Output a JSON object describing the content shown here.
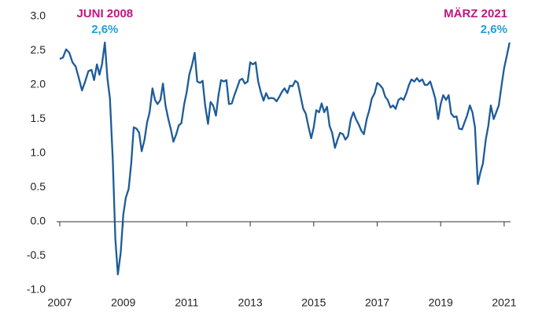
{
  "chart_data": {
    "type": "line",
    "x": [
      2007.0,
      2007.1,
      2007.2,
      2007.3,
      2007.4,
      2007.5,
      2007.6,
      2007.7,
      2007.8,
      2007.9,
      2008.0,
      2008.08,
      2008.17,
      2008.25,
      2008.33,
      2008.42,
      2008.5,
      2008.58,
      2008.67,
      2008.75,
      2008.83,
      2008.92,
      2009.0,
      2009.08,
      2009.17,
      2009.25,
      2009.33,
      2009.42,
      2009.5,
      2009.58,
      2009.67,
      2009.75,
      2009.83,
      2009.92,
      2010.0,
      2010.08,
      2010.17,
      2010.25,
      2010.33,
      2010.42,
      2010.5,
      2010.58,
      2010.67,
      2010.75,
      2010.83,
      2010.92,
      2011.0,
      2011.08,
      2011.17,
      2011.25,
      2011.33,
      2011.42,
      2011.5,
      2011.58,
      2011.67,
      2011.75,
      2011.83,
      2011.92,
      2012.0,
      2012.08,
      2012.17,
      2012.25,
      2012.33,
      2012.42,
      2012.5,
      2012.58,
      2012.67,
      2012.75,
      2012.83,
      2012.92,
      2013.0,
      2013.08,
      2013.17,
      2013.25,
      2013.33,
      2013.42,
      2013.5,
      2013.58,
      2013.67,
      2013.75,
      2013.83,
      2013.92,
      2014.0,
      2014.08,
      2014.17,
      2014.25,
      2014.33,
      2014.42,
      2014.5,
      2014.58,
      2014.67,
      2014.75,
      2014.83,
      2014.92,
      2015.0,
      2015.08,
      2015.17,
      2015.25,
      2015.33,
      2015.42,
      2015.5,
      2015.58,
      2015.67,
      2015.75,
      2015.83,
      2015.92,
      2016.0,
      2016.08,
      2016.17,
      2016.25,
      2016.33,
      2016.42,
      2016.5,
      2016.58,
      2016.67,
      2016.75,
      2016.83,
      2016.92,
      2017.0,
      2017.08,
      2017.17,
      2017.25,
      2017.33,
      2017.42,
      2017.5,
      2017.58,
      2017.67,
      2017.75,
      2017.83,
      2017.92,
      2018.0,
      2018.08,
      2018.17,
      2018.25,
      2018.33,
      2018.42,
      2018.5,
      2018.58,
      2018.67,
      2018.75,
      2018.83,
      2018.92,
      2019.0,
      2019.08,
      2019.17,
      2019.25,
      2019.33,
      2019.42,
      2019.5,
      2019.58,
      2019.67,
      2019.75,
      2019.83,
      2019.92,
      2020.0,
      2020.08,
      2020.17,
      2020.25,
      2020.33,
      2020.42,
      2020.5,
      2020.58,
      2020.67,
      2020.75,
      2020.83,
      2020.92,
      2021.0,
      2021.08,
      2021.17
    ],
    "series": [
      {
        "color": "#1d5c99",
        "values": [
          2.38,
          2.4,
          2.52,
          2.47,
          2.33,
          2.27,
          2.1,
          1.92,
          2.05,
          2.2,
          2.22,
          2.07,
          2.3,
          2.15,
          2.3,
          2.62,
          2.1,
          1.8,
          0.9,
          -0.25,
          -0.77,
          -0.45,
          0.1,
          0.35,
          0.48,
          0.85,
          1.38,
          1.36,
          1.3,
          1.03,
          1.2,
          1.45,
          1.6,
          1.95,
          1.78,
          1.72,
          1.78,
          2.02,
          1.7,
          1.5,
          1.35,
          1.17,
          1.28,
          1.41,
          1.44,
          1.72,
          1.9,
          2.15,
          2.3,
          2.47,
          2.05,
          2.03,
          2.06,
          1.7,
          1.43,
          1.75,
          1.7,
          1.55,
          1.85,
          2.07,
          2.05,
          2.07,
          1.72,
          1.73,
          1.85,
          1.95,
          2.07,
          2.09,
          2.02,
          2.05,
          2.33,
          2.3,
          2.33,
          2.05,
          1.9,
          1.77,
          1.88,
          1.8,
          1.81,
          1.8,
          1.76,
          1.83,
          1.9,
          1.95,
          1.88,
          1.99,
          1.98,
          2.06,
          2.03,
          1.85,
          1.65,
          1.58,
          1.4,
          1.22,
          1.38,
          1.63,
          1.6,
          1.73,
          1.6,
          1.68,
          1.4,
          1.3,
          1.08,
          1.2,
          1.3,
          1.28,
          1.2,
          1.25,
          1.5,
          1.6,
          1.5,
          1.42,
          1.33,
          1.28,
          1.5,
          1.63,
          1.8,
          1.88,
          2.03,
          2.0,
          1.95,
          1.83,
          1.78,
          1.67,
          1.7,
          1.65,
          1.78,
          1.81,
          1.78,
          1.88,
          2.0,
          2.08,
          2.05,
          2.1,
          2.05,
          2.08,
          2.0,
          2.0,
          2.05,
          1.93,
          1.8,
          1.5,
          1.72,
          1.85,
          1.78,
          1.85,
          1.58,
          1.53,
          1.54,
          1.36,
          1.35,
          1.45,
          1.55,
          1.7,
          1.6,
          1.38,
          0.55,
          0.72,
          0.85,
          1.2,
          1.4,
          1.7,
          1.5,
          1.6,
          1.7,
          2.0,
          2.25,
          2.42,
          2.62
        ]
      }
    ],
    "xlim": [
      2007,
      2021.2
    ],
    "xticks": [
      2007,
      2009,
      2011,
      2013,
      2015,
      2017,
      2019,
      2021
    ],
    "ylim": [
      -1.0,
      3.0
    ],
    "yticks": [
      {
        "value": 3.0,
        "label": "3.0"
      },
      2.5,
      {
        "value": 2.0,
        "label": "2.0"
      },
      1.5,
      {
        "value": 1.0,
        "label": "1.0"
      },
      0.5,
      {
        "value": 0.0,
        "label": "0.0"
      },
      -0.5,
      {
        "value": -1.0,
        "label": "-1.0"
      }
    ],
    "annotations": [
      {
        "text": "JUNI 2008",
        "x": 2008.42,
        "value": 2.6,
        "value_label": "2,6%",
        "color": "#c0157f",
        "value_color": "#1ea0d7"
      },
      {
        "text": "MÄRZ 2021",
        "x": 2021.17,
        "value": 2.6,
        "value_label": "2,6%",
        "color": "#c0157f",
        "value_color": "#1ea0d7"
      }
    ]
  }
}
